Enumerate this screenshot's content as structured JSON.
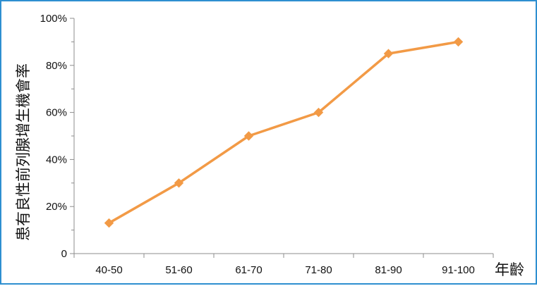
{
  "chart_data": {
    "type": "line",
    "categories": [
      "40-50",
      "51-60",
      "61-70",
      "71-80",
      "81-90",
      "91-100"
    ],
    "series": [
      {
        "values": [
          13,
          30,
          50,
          60,
          85,
          90
        ]
      }
    ],
    "ylim": [
      0,
      100
    ],
    "yticks": [
      0,
      20,
      40,
      60,
      80,
      100
    ],
    "ytick_labels": [
      "0",
      "20%",
      "40%",
      "60%",
      "80%",
      "100%"
    ],
    "xlabel": "年齡",
    "ylabel": "患有良性前列腺增生機會率",
    "grid": false,
    "line_color": "#f29a46",
    "frame_color": "#2e8fd0"
  }
}
